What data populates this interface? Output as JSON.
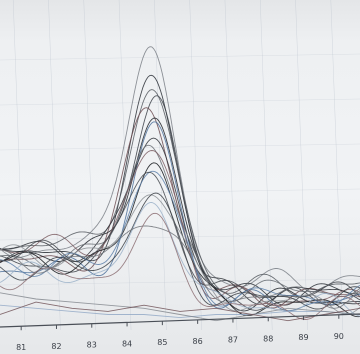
{
  "chart_data": {
    "type": "line",
    "xlabel": "",
    "ylabel": "",
    "xlim": [
      80.4,
      90.6
    ],
    "ylim": [
      0,
      1
    ],
    "grid": true,
    "x_ticks": [
      81,
      82,
      83,
      84,
      85,
      86,
      87,
      88,
      89,
      90
    ],
    "x_tick_labels": [
      "81",
      "82",
      "83",
      "84",
      "85",
      "86",
      "87",
      "88",
      "89",
      "90"
    ],
    "colors": {
      "axis": "#4a4f57",
      "tick_text": "#3a3f47",
      "grid": "#b9c1cc"
    },
    "series": [
      {
        "color": "#7a7f86",
        "peak_x": 84.6,
        "peak": 0.91,
        "base": 0.26,
        "tail": 0.16,
        "width": 0.65
      },
      {
        "color": "#2a2f36",
        "peak_x": 84.75,
        "peak": 0.81,
        "base": 0.24,
        "tail": 0.12,
        "width": 0.63
      },
      {
        "color": "#3b3f46",
        "peak_x": 84.8,
        "peak": 0.78,
        "base": 0.21,
        "tail": 0.1,
        "width": 0.6
      },
      {
        "color": "#55595f",
        "peak_x": 84.7,
        "peak": 0.75,
        "base": 0.28,
        "tail": 0.14,
        "width": 0.66
      },
      {
        "color": "#6b4a4f",
        "peak_x": 84.6,
        "peak": 0.72,
        "base": 0.22,
        "tail": 0.11,
        "width": 0.62
      },
      {
        "color": "#1e2228",
        "peak_x": 84.75,
        "peak": 0.69,
        "base": 0.25,
        "tail": 0.1,
        "width": 0.6
      },
      {
        "color": "#4a6f9a",
        "peak_x": 84.8,
        "peak": 0.66,
        "base": 0.2,
        "tail": 0.09,
        "width": 0.58
      },
      {
        "color": "#2f3338",
        "peak_x": 84.75,
        "peak": 0.63,
        "base": 0.26,
        "tail": 0.12,
        "width": 0.61
      },
      {
        "color": "#6a6e74",
        "peak_x": 84.6,
        "peak": 0.6,
        "base": 0.23,
        "tail": 0.13,
        "width": 0.64
      },
      {
        "color": "#7b5d62",
        "peak_x": 84.7,
        "peak": 0.57,
        "base": 0.27,
        "tail": 0.1,
        "width": 0.62
      },
      {
        "color": "#121519",
        "peak_x": 84.8,
        "peak": 0.55,
        "base": 0.22,
        "tail": 0.08,
        "width": 0.57
      },
      {
        "color": "#5c7fa8",
        "peak_x": 84.7,
        "peak": 0.52,
        "base": 0.21,
        "tail": 0.11,
        "width": 0.6
      },
      {
        "color": "#44484e",
        "peak_x": 84.6,
        "peak": 0.49,
        "base": 0.25,
        "tail": 0.12,
        "width": 0.62
      },
      {
        "color": "#8a8e93",
        "peak_x": 84.75,
        "peak": 0.46,
        "base": 0.24,
        "tail": 0.09,
        "width": 0.59
      },
      {
        "color": "#3a3e44",
        "peak_x": 84.7,
        "peak": 0.43,
        "base": 0.2,
        "tail": 0.1,
        "width": 0.58
      },
      {
        "color": "#9ab0c8",
        "peak_x": 84.8,
        "peak": 0.4,
        "base": 0.18,
        "tail": 0.08,
        "width": 0.6
      },
      {
        "color": "#6e7278",
        "peak_x": 84.6,
        "peak": 0.37,
        "base": 0.22,
        "tail": 0.11,
        "width": 0.63
      },
      {
        "color": "#8c6e73",
        "peak_x": 84.75,
        "peak": 0.34,
        "base": 0.17,
        "tail": 0.07,
        "width": 0.61
      }
    ],
    "flat_traces": [
      {
        "color": "#8ea6c4",
        "y": [
          0.08,
          0.07,
          0.06,
          0.05,
          0.05,
          0.04,
          0.05,
          0.05,
          0.06,
          0.06,
          0.05
        ]
      },
      {
        "color": "#7e8389",
        "y": [
          0.12,
          0.1,
          0.09,
          0.08,
          0.07,
          0.05,
          0.03,
          0.05,
          0.07,
          0.06,
          0.05
        ]
      },
      {
        "color": "#6a4b50",
        "y": [
          0.05,
          0.09,
          0.07,
          0.06,
          0.08,
          0.06,
          0.07,
          0.05,
          0.03,
          0.05,
          0.07
        ]
      }
    ]
  }
}
